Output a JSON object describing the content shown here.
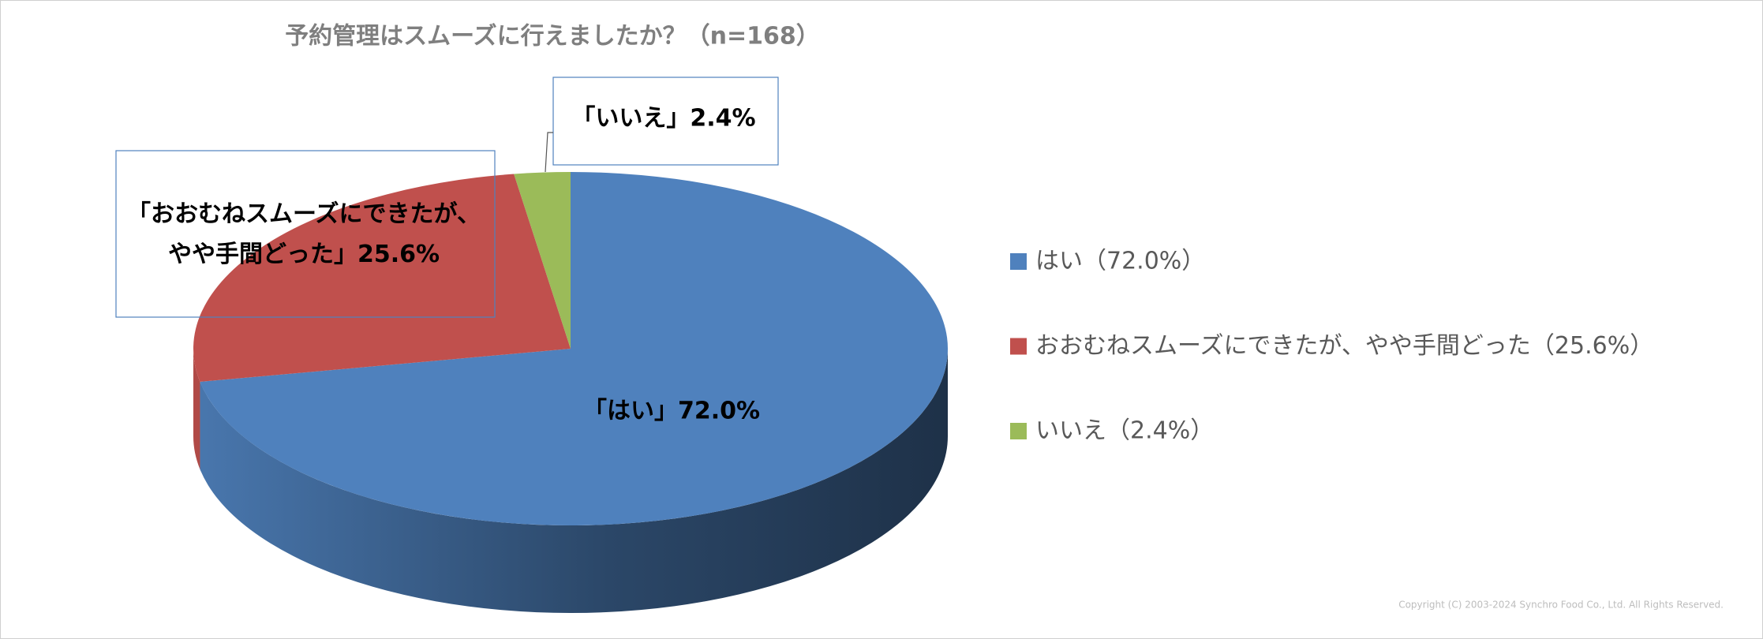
{
  "chart_data": {
    "type": "pie3d",
    "title": "予約管理はスムーズに行えましたか？（n=168）",
    "categories": [
      "はい",
      "おおむねスムーズにできたが、やや手間どった",
      "いいえ"
    ],
    "values": [
      72.0,
      25.6,
      2.4
    ],
    "value_labels": [
      "「はい」72.0%",
      "「おおむねスムーズにできたが、\nやや手間どった」25.6%",
      "「いいえ」2.4%"
    ],
    "legend_labels": [
      "はい（72.0%）",
      "おおむねスムーズにできたが、やや手間どった（25.6%）",
      "いいえ（2.4%）"
    ],
    "colors": [
      "#4f81bd",
      "#c0504d",
      "#9bbb59"
    ],
    "legend": "right",
    "copyright": "Copyright (C) 2003-2024   Synchro Food Co., Ltd. All Rights Reserved."
  }
}
